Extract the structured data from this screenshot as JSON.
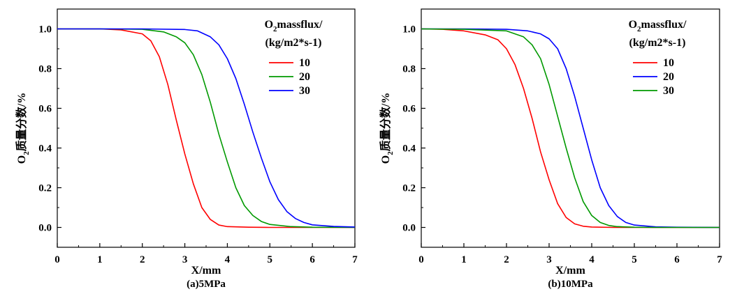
{
  "chart_data": [
    {
      "type": "line",
      "caption": "(a)5MPa",
      "xlabel": "X/mm",
      "ylabel_main": "O",
      "ylabel_sub": "2",
      "ylabel_rest": "质量分数/%",
      "xlim": [
        0,
        7
      ],
      "ylim": [
        -0.1,
        1.1
      ],
      "xticks": [
        "0",
        "1",
        "2",
        "3",
        "4",
        "5",
        "6",
        "7"
      ],
      "yticks": [
        "0.0",
        "0.2",
        "0.4",
        "0.6",
        "0.8",
        "1.0"
      ],
      "legend_title_main": "O",
      "legend_title_sub": "2",
      "legend_title_rest": "massflux/",
      "legend_title_line2": "(kg/m2*s-1)",
      "series": [
        {
          "name": "10",
          "color": "#ff0000",
          "x": [
            0,
            1,
            1.5,
            2,
            2.2,
            2.4,
            2.6,
            2.8,
            3.0,
            3.2,
            3.4,
            3.6,
            3.8,
            4.0,
            4.5,
            5,
            6,
            7
          ],
          "y": [
            1.0,
            1.0,
            0.995,
            0.975,
            0.94,
            0.86,
            0.72,
            0.54,
            0.37,
            0.22,
            0.1,
            0.04,
            0.012,
            0.004,
            0.001,
            0.0,
            0.0,
            0.0
          ]
        },
        {
          "name": "20",
          "color": "#009900",
          "x": [
            0,
            1,
            2,
            2.5,
            2.8,
            3.0,
            3.2,
            3.4,
            3.6,
            3.8,
            4.0,
            4.2,
            4.4,
            4.6,
            4.8,
            5.0,
            5.5,
            6,
            7
          ],
          "y": [
            1.0,
            1.0,
            0.998,
            0.985,
            0.96,
            0.93,
            0.87,
            0.77,
            0.63,
            0.47,
            0.33,
            0.2,
            0.11,
            0.06,
            0.03,
            0.015,
            0.004,
            0.001,
            0.0
          ]
        },
        {
          "name": "30",
          "color": "#0000ff",
          "x": [
            0,
            1,
            2,
            3,
            3.3,
            3.6,
            3.8,
            4.0,
            4.2,
            4.4,
            4.6,
            4.8,
            5.0,
            5.2,
            5.4,
            5.6,
            5.8,
            6.0,
            6.5,
            7
          ],
          "y": [
            1.0,
            1.0,
            1.0,
            0.997,
            0.99,
            0.96,
            0.92,
            0.85,
            0.75,
            0.62,
            0.48,
            0.35,
            0.23,
            0.14,
            0.08,
            0.045,
            0.025,
            0.013,
            0.005,
            0.002
          ]
        }
      ]
    },
    {
      "type": "line",
      "caption": "(b)10MPa",
      "xlabel": "X/mm",
      "ylabel_main": "O",
      "ylabel_sub": "2",
      "ylabel_rest": "质量分数/%",
      "xlim": [
        0,
        7
      ],
      "ylim": [
        -0.1,
        1.1
      ],
      "xticks": [
        "0",
        "1",
        "2",
        "3",
        "4",
        "5",
        "6",
        "7"
      ],
      "yticks": [
        "0.0",
        "0.2",
        "0.4",
        "0.6",
        "0.8",
        "1.0"
      ],
      "legend_title_main": "O",
      "legend_title_sub": "2",
      "legend_title_rest": "massflux/",
      "legend_title_line2": "(kg/m2*s-1)",
      "series": [
        {
          "name": "10",
          "color": "#ff0000",
          "x": [
            0,
            0.5,
            1,
            1.5,
            1.8,
            2.0,
            2.2,
            2.4,
            2.6,
            2.8,
            3.0,
            3.2,
            3.4,
            3.6,
            3.8,
            4.0,
            4.5,
            5,
            6,
            7
          ],
          "y": [
            1.0,
            0.998,
            0.99,
            0.97,
            0.945,
            0.9,
            0.82,
            0.7,
            0.55,
            0.38,
            0.24,
            0.12,
            0.05,
            0.018,
            0.006,
            0.002,
            0.0,
            0.0,
            0.0,
            0.0
          ]
        },
        {
          "name": "20",
          "color": "#0000ff",
          "x": [
            0,
            1,
            2,
            2.5,
            2.8,
            3.0,
            3.2,
            3.4,
            3.6,
            3.8,
            4.0,
            4.2,
            4.4,
            4.6,
            4.8,
            5.0,
            5.5,
            6,
            7
          ],
          "y": [
            1.0,
            1.0,
            0.998,
            0.99,
            0.975,
            0.95,
            0.9,
            0.8,
            0.66,
            0.5,
            0.34,
            0.2,
            0.11,
            0.055,
            0.025,
            0.012,
            0.003,
            0.001,
            0.0
          ]
        },
        {
          "name": "30",
          "color": "#009900",
          "x": [
            0,
            1,
            2,
            2.4,
            2.6,
            2.8,
            3.0,
            3.2,
            3.4,
            3.6,
            3.8,
            4.0,
            4.2,
            4.4,
            4.6,
            5.0,
            5.5,
            6,
            7
          ],
          "y": [
            1.0,
            0.998,
            0.99,
            0.96,
            0.92,
            0.85,
            0.72,
            0.56,
            0.4,
            0.25,
            0.13,
            0.06,
            0.025,
            0.01,
            0.004,
            0.001,
            0.0,
            0.0,
            0.0
          ]
        }
      ]
    }
  ]
}
